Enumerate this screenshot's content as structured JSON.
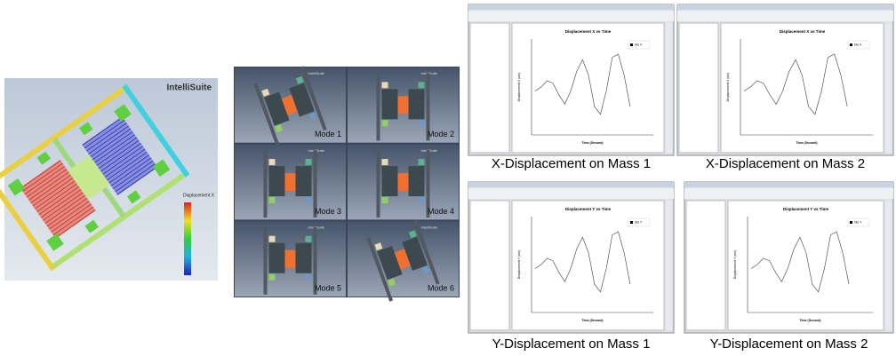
{
  "simulation": {
    "brand": "IntelliSuite",
    "legend_title": "Displacement X"
  },
  "modes": {
    "brand": "IntelliSuite",
    "labels": [
      "Mode 1",
      "Mode 2",
      "Mode 3",
      "Mode 4",
      "Mode 5",
      "Mode 6"
    ]
  },
  "plots": [
    {
      "title": "Displacement X vs Time",
      "y_label": "Displacement X (um)",
      "x_label": "Time (Second)",
      "legend": "Dis X",
      "caption": "X-Displacement on Mass 1"
    },
    {
      "title": "Displacement X vs Time",
      "y_label": "Displacement X (um)",
      "x_label": "Time (Second)",
      "legend": "Dis X",
      "caption": "X-Displacement on Mass 2"
    },
    {
      "title": "Displacement Y vs Time",
      "y_label": "Displacement Y (um)",
      "x_label": "Time (Second)",
      "legend": "Dis Y",
      "caption": "Y-Displacement on Mass 1"
    },
    {
      "title": "Displacement Y vs Time",
      "y_label": "Displacement Y (um)",
      "x_label": "Time (Second)",
      "legend": "Dis Y",
      "caption": "Y-Displacement on Mass 2"
    }
  ]
}
